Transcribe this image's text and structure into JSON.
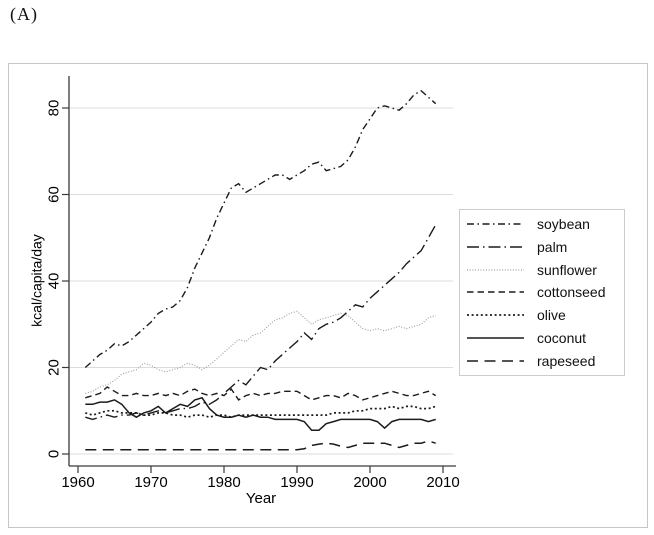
{
  "figure_label": "(A)",
  "colors": {
    "background": "#ffffff",
    "figure_border": "#c6c6c6",
    "grid": "#dcdcdc",
    "axis": "#3a3a3a",
    "line_dark": "#1b1b1b",
    "line_light_gray": "#9e9e9e"
  },
  "chart_data": {
    "type": "line",
    "title": "",
    "xlabel": "Year",
    "ylabel": "kcal/capita/day",
    "x_ticks": [
      "1960",
      "1970",
      "1980",
      "1990",
      "2000",
      "2010"
    ],
    "y_ticks": [
      "0",
      "20",
      "40",
      "60",
      "80"
    ],
    "xlim": [
      1959,
      2011
    ],
    "ylim": [
      0,
      87
    ],
    "grid": "horizontal-only",
    "legend_position": "right-outside-middle",
    "years": {
      "start": 1961,
      "end": 2009,
      "step": 1
    },
    "series": [
      {
        "name": "soybean",
        "dash": "7 3.5 1.5 3.5",
        "color": "#1b1b1b",
        "width": 1.4,
        "values": [
          20,
          21.5,
          23,
          24,
          25.5,
          25,
          26,
          27.5,
          29,
          30.5,
          32.5,
          33.5,
          34,
          35.5,
          38.5,
          43,
          46.5,
          50,
          54.5,
          58,
          61.5,
          62.5,
          60.5,
          61.5,
          62.5,
          63.5,
          64.5,
          64.5,
          63.5,
          64.5,
          65.5,
          67,
          67.5,
          65.5,
          66,
          66.5,
          68,
          71,
          75,
          77.5,
          80,
          80.5,
          80,
          79.5,
          81,
          83,
          84,
          82.5,
          81
        ]
      },
      {
        "name": "palm",
        "dash": "12 4 1.5 4",
        "color": "#1b1b1b",
        "width": 1.4,
        "values": [
          8.5,
          8,
          8.5,
          9,
          8.5,
          9,
          9,
          9.5,
          9,
          9.5,
          10,
          9.5,
          10,
          10.5,
          10.5,
          11,
          12,
          11.5,
          12.5,
          14,
          15.5,
          17,
          16,
          18,
          20,
          19.5,
          21.5,
          23,
          24.5,
          26,
          28,
          26.5,
          29,
          30,
          30.5,
          31.5,
          33,
          34.5,
          34,
          36,
          37.5,
          39,
          40.5,
          42,
          44,
          45.5,
          47,
          50,
          53
        ]
      },
      {
        "name": "sunflower",
        "dash": "1 1.7",
        "color": "#9e9e9e",
        "width": 1.15,
        "values": [
          14,
          14.5,
          15.5,
          16,
          17,
          18.5,
          19,
          19.5,
          21,
          20.5,
          19.5,
          19,
          19.5,
          20,
          21,
          20.5,
          19.5,
          20.5,
          22,
          23.5,
          25,
          26.5,
          26,
          27.5,
          28,
          29.5,
          31,
          31.5,
          32.5,
          33,
          31.5,
          30,
          31,
          31.5,
          32,
          32.5,
          32,
          30.5,
          29,
          28.5,
          29,
          28.5,
          29,
          29.5,
          29,
          29.5,
          30,
          31.5,
          32
        ]
      },
      {
        "name": "cottonseed",
        "dash": "6.5 4",
        "color": "#1b1b1b",
        "width": 1.4,
        "values": [
          13,
          13.5,
          14,
          15.5,
          14.5,
          13.5,
          13.5,
          14,
          13.5,
          13.5,
          14,
          13.5,
          14,
          13.5,
          14.5,
          15,
          14,
          13.5,
          14,
          13.5,
          15,
          12.5,
          13.5,
          14,
          13.5,
          14,
          14,
          14.5,
          14.5,
          14.5,
          13.5,
          12.5,
          13,
          13.5,
          13.5,
          13,
          14,
          13.5,
          12.5,
          13,
          13.5,
          14,
          14.5,
          14,
          13.5,
          13.5,
          14,
          14.5,
          13.5
        ]
      },
      {
        "name": "olive",
        "dash": "2 2.6",
        "color": "#1b1b1b",
        "width": 1.7,
        "values": [
          9.5,
          9,
          9.5,
          10,
          10,
          9.5,
          9.5,
          9.5,
          9,
          9,
          9.5,
          9.5,
          9,
          9,
          8.5,
          9,
          9,
          8.5,
          9,
          9,
          8.5,
          9,
          9,
          9,
          9,
          9,
          9,
          9,
          9,
          9,
          9,
          9,
          9,
          9,
          9.5,
          9.5,
          9.5,
          10,
          10,
          10.5,
          10.5,
          10.5,
          11,
          10.5,
          11,
          11,
          10.5,
          10.5,
          11
        ]
      },
      {
        "name": "coconut",
        "dash": "",
        "color": "#1b1b1b",
        "width": 1.5,
        "values": [
          11.5,
          11.5,
          12,
          12,
          12.5,
          11.5,
          9.5,
          8.5,
          9.5,
          10,
          11,
          9.5,
          10.5,
          11.5,
          11,
          12.5,
          13,
          10.5,
          9,
          8.5,
          8.5,
          9,
          8.5,
          9,
          8.5,
          8.5,
          8,
          8,
          8,
          8,
          7.5,
          5.5,
          5.5,
          7,
          7.5,
          8,
          8,
          8,
          8,
          8,
          7.5,
          6,
          7.5,
          8,
          8,
          8,
          8,
          7.5,
          8
        ]
      },
      {
        "name": "rapeseed",
        "dash": "11 6.5",
        "color": "#1b1b1b",
        "width": 1.5,
        "values": [
          1,
          1,
          1,
          1,
          1,
          1,
          1,
          1,
          1,
          1,
          1,
          1,
          1,
          1,
          1,
          1,
          1,
          1,
          1,
          1,
          1,
          1,
          1,
          1,
          1,
          1,
          1,
          1,
          1,
          1,
          1.2,
          2,
          2.3,
          2.5,
          2.3,
          1.8,
          1.5,
          2,
          2.5,
          2.5,
          2.5,
          2.5,
          2,
          1.5,
          2,
          2.5,
          2.5,
          3,
          2.5
        ]
      }
    ]
  }
}
